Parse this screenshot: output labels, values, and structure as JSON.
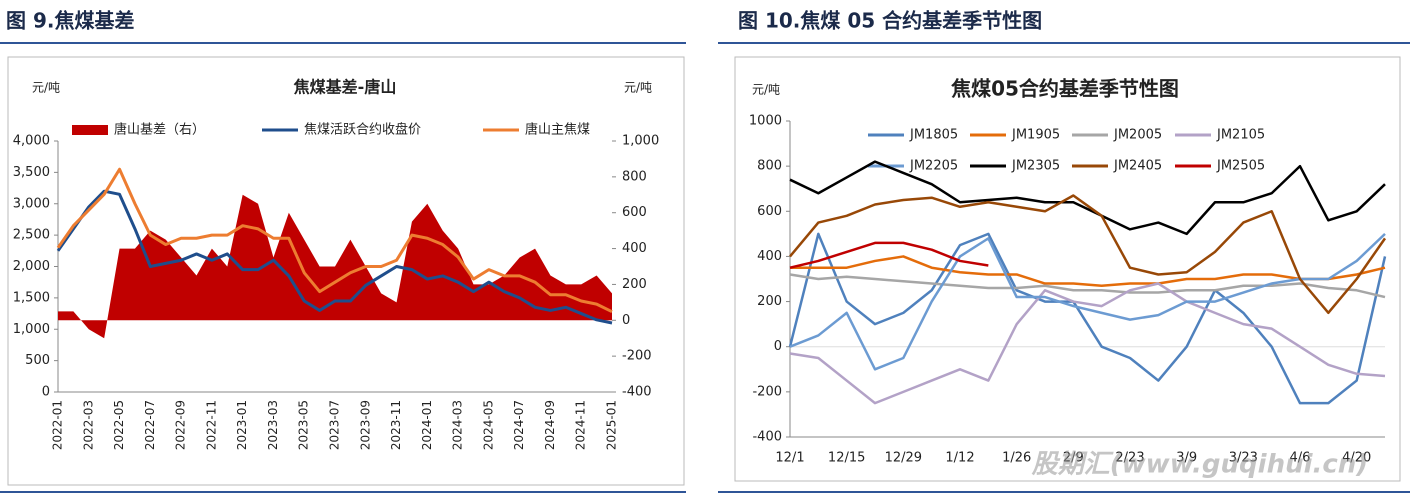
{
  "headers": [
    "图 9.焦煤基差",
    "图 10.焦煤 05 合约基差季节性图"
  ],
  "watermark": "股期汇(www.guqihui.cn)",
  "chart_data": [
    {
      "type": "line",
      "title": "焦煤基差-唐山",
      "y_label": "元/吨",
      "y2_label": "元/吨",
      "categories": [
        "2022-01",
        null,
        "2022-03",
        null,
        "2022-05",
        null,
        "2022-07",
        null,
        "2022-09",
        null,
        "2022-11",
        null,
        "2023-01",
        null,
        "2023-03",
        null,
        "2023-05",
        null,
        "2023-07",
        null,
        "2023-09",
        null,
        "2023-11",
        null,
        "2024-01",
        null,
        "2024-03",
        null,
        "2024-05",
        null,
        "2024-07",
        null,
        "2024-09",
        null,
        "2024-11",
        null,
        "2025-01"
      ],
      "ylim": [
        0,
        4000
      ],
      "yticks": [
        0,
        500,
        {
          "value": 1000,
          "label": "1,000"
        },
        {
          "value": 1500,
          "label": "1,500"
        },
        {
          "value": 2000,
          "label": "2,000"
        },
        {
          "value": 2500,
          "label": "2,500"
        },
        {
          "value": 3000,
          "label": "3,000"
        },
        {
          "value": 3500,
          "label": "3,500"
        },
        {
          "value": 4000,
          "label": "4,000"
        }
      ],
      "y2lim": [
        -400,
        1000
      ],
      "y2ticks": [
        -400,
        -200,
        0,
        200,
        400,
        600,
        800,
        {
          "value": 1000,
          "label": "1,000"
        }
      ],
      "series": [
        {
          "name": "唐山基差（右）",
          "color": "#c00000",
          "kind": "area",
          "axis": "y2",
          "values": [
            50,
            50,
            -50,
            -100,
            400,
            400,
            500,
            450,
            350,
            250,
            400,
            300,
            700,
            650,
            350,
            600,
            450,
            300,
            300,
            450,
            300,
            150,
            100,
            550,
            650,
            500,
            400,
            200,
            200,
            250,
            350,
            400,
            250,
            200,
            200,
            250,
            150
          ]
        },
        {
          "name": "焦煤活跃合约收盘价",
          "color": "#1f4e8c",
          "kind": "line",
          "values": [
            2250,
            2600,
            2950,
            3200,
            3150,
            2600,
            2000,
            2050,
            2100,
            2200,
            2100,
            2200,
            1950,
            1950,
            2100,
            1850,
            1450,
            1300,
            1450,
            1450,
            1700,
            1850,
            2000,
            1950,
            1800,
            1850,
            1750,
            1600,
            1750,
            1600,
            1500,
            1350,
            1300,
            1350,
            1250,
            1150,
            1100
          ]
        },
        {
          "name": "唐山主焦煤",
          "color": "#ed7d31",
          "kind": "line",
          "values": [
            2300,
            2650,
            2900,
            3150,
            3550,
            3000,
            2500,
            2350,
            2450,
            2450,
            2500,
            2500,
            2650,
            2600,
            2450,
            2450,
            1900,
            1600,
            1750,
            1900,
            2000,
            2000,
            2100,
            2500,
            2450,
            2350,
            2150,
            1800,
            1950,
            1850,
            1850,
            1750,
            1550,
            1550,
            1450,
            1400,
            1280
          ]
        }
      ]
    },
    {
      "type": "line",
      "title": "焦煤05合约基差季节性图",
      "y_label": "元/吨",
      "categories": [
        "12/1",
        null,
        "12/15",
        null,
        "12/29",
        null,
        "1/12",
        null,
        "1/26",
        null,
        "2/9",
        null,
        "2/23",
        null,
        "3/9",
        null,
        "3/23",
        null,
        "4/6",
        null,
        "4/20",
        null
      ],
      "ylim": [
        -400,
        1000
      ],
      "yticks": [
        -400,
        -200,
        0,
        200,
        400,
        600,
        800,
        1000
      ],
      "series": [
        {
          "name": "JM1805",
          "color": "#4f81bd",
          "values": [
            0,
            500,
            200,
            100,
            150,
            250,
            450,
            500,
            250,
            200,
            200,
            0,
            -50,
            -150,
            0,
            250,
            150,
            0,
            -250,
            -250,
            -150,
            400
          ]
        },
        {
          "name": "JM1905",
          "color": "#e46c0a",
          "values": [
            350,
            350,
            350,
            380,
            400,
            350,
            330,
            320,
            320,
            280,
            280,
            270,
            280,
            280,
            300,
            300,
            320,
            320,
            300,
            300,
            320,
            350
          ]
        },
        {
          "name": "JM2005",
          "color": "#a6a6a6",
          "values": [
            320,
            300,
            310,
            300,
            290,
            280,
            270,
            260,
            260,
            270,
            250,
            250,
            240,
            240,
            250,
            250,
            270,
            270,
            280,
            260,
            250,
            220
          ]
        },
        {
          "name": "JM2105",
          "color": "#b3a2c7",
          "values": [
            -30,
            -50,
            -150,
            -250,
            -200,
            -150,
            -100,
            -150,
            100,
            250,
            200,
            180,
            250,
            280,
            200,
            150,
            100,
            80,
            0,
            -80,
            -120,
            -130
          ]
        },
        {
          "name": "JM2205",
          "color": "#6c9bd2",
          "values": [
            0,
            50,
            150,
            -100,
            -50,
            200,
            400,
            480,
            220,
            220,
            180,
            150,
            120,
            140,
            200,
            200,
            240,
            280,
            300,
            300,
            380,
            500
          ]
        },
        {
          "name": "JM2305",
          "color": "#000000",
          "values": [
            740,
            680,
            750,
            820,
            770,
            720,
            640,
            650,
            660,
            640,
            640,
            580,
            520,
            550,
            500,
            640,
            640,
            680,
            800,
            560,
            600,
            720
          ]
        },
        {
          "name": "JM2405",
          "color": "#984807",
          "values": [
            400,
            550,
            580,
            630,
            650,
            660,
            620,
            640,
            620,
            600,
            670,
            580,
            350,
            320,
            330,
            420,
            550,
            600,
            300,
            150,
            300,
            480
          ]
        },
        {
          "name": "JM2505",
          "color": "#c00000",
          "values": [
            350,
            380,
            420,
            460,
            460,
            430,
            380,
            360,
            null,
            null,
            null,
            null,
            null,
            null,
            null,
            null,
            null,
            null,
            null,
            null,
            null,
            null
          ]
        }
      ]
    }
  ]
}
